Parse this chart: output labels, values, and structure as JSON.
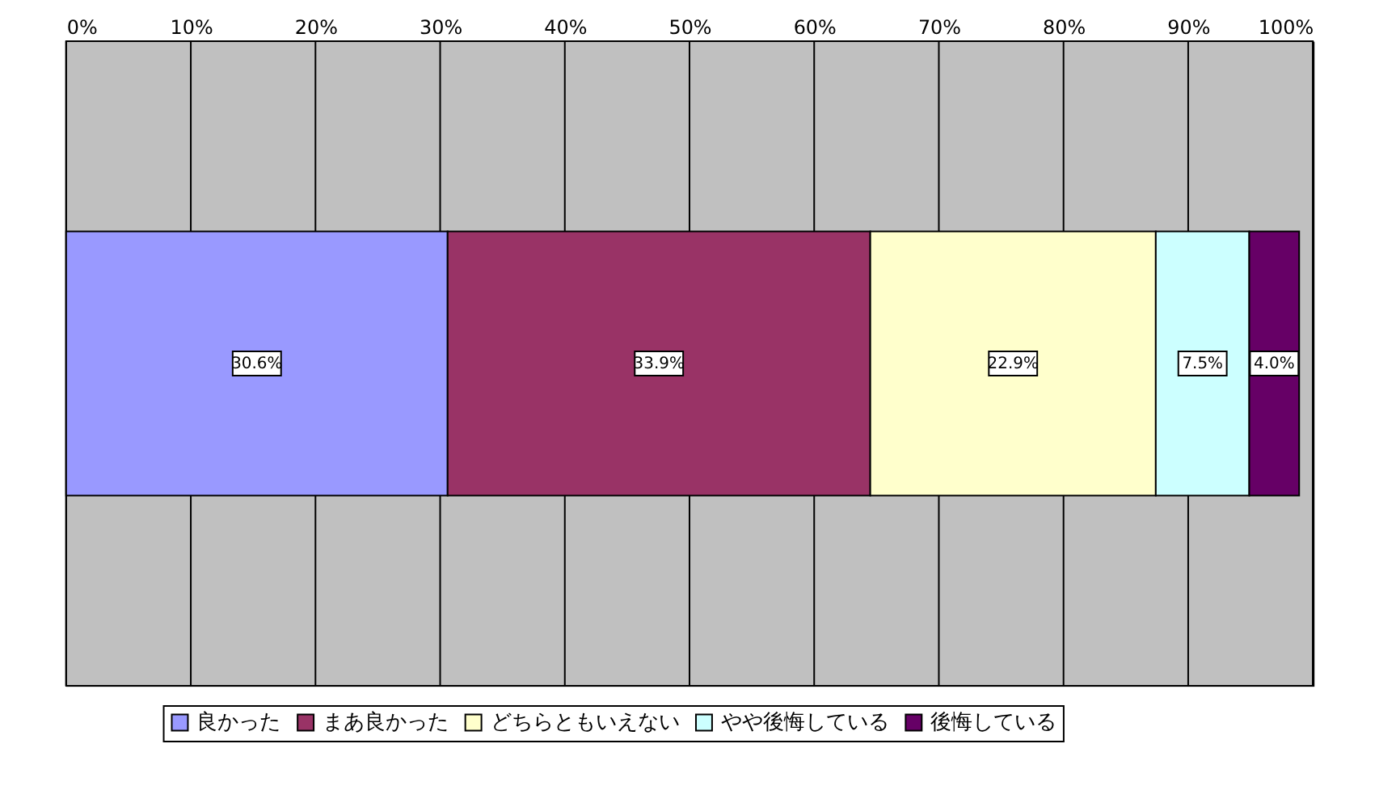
{
  "chart_data": {
    "type": "bar",
    "orientation": "horizontal",
    "stacked": true,
    "categories": [
      null
    ],
    "series": [
      {
        "name": "良かった",
        "color": "#9999ff",
        "values": [
          30.6
        ],
        "value_labels": [
          "30.6%"
        ]
      },
      {
        "name": "まあ良かった",
        "color": "#993366",
        "values": [
          33.9
        ],
        "value_labels": [
          "33.9%"
        ]
      },
      {
        "name": "どちらともいえない",
        "color": "#ffffcc",
        "values": [
          22.9
        ],
        "value_labels": [
          "22.9%"
        ]
      },
      {
        "name": "やや後悔している",
        "color": "#ccffff",
        "values": [
          7.5
        ],
        "value_labels": [
          "7.5%"
        ]
      },
      {
        "name": "後悔している",
        "color": "#660066",
        "values": [
          4.0
        ],
        "value_labels": [
          "4.0%"
        ]
      }
    ],
    "xlim": [
      0,
      100
    ],
    "xticks": [
      {
        "value": 0,
        "label": "0%"
      },
      {
        "value": 10,
        "label": "10%"
      },
      {
        "value": 20,
        "label": "20%"
      },
      {
        "value": 30,
        "label": "30%"
      },
      {
        "value": 40,
        "label": "40%"
      },
      {
        "value": 50,
        "label": "50%"
      },
      {
        "value": 60,
        "label": "60%"
      },
      {
        "value": 70,
        "label": "70%"
      },
      {
        "value": 80,
        "label": "80%"
      },
      {
        "value": 90,
        "label": "90%"
      },
      {
        "value": 100,
        "label": "100%"
      }
    ],
    "grid": "x",
    "legend": "bottom"
  }
}
